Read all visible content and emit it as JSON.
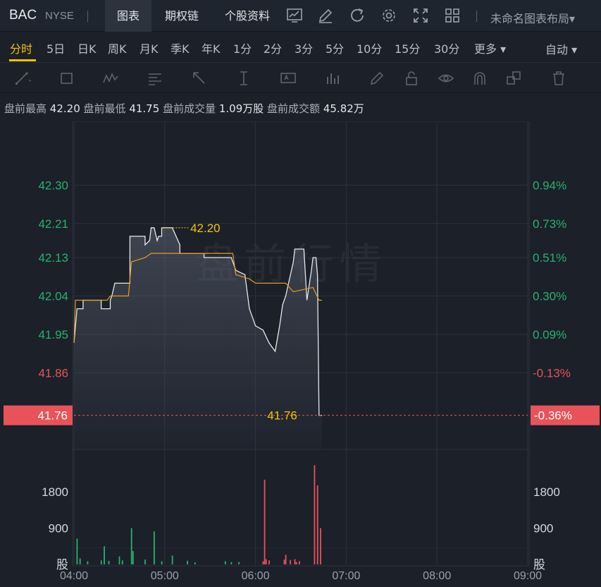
{
  "header": {
    "symbol": "BAC",
    "exchange": "NYSE",
    "tabs": [
      "图表",
      "期权链",
      "个股资料"
    ],
    "active_tab": "图表",
    "icons": [
      "chart-line-icon",
      "edit-icon",
      "refresh-icon",
      "settings-icon",
      "fullscreen-icon",
      "grid-layout-icon"
    ],
    "layout_label": "未命名图表布局▾"
  },
  "periods": {
    "items": [
      "分时",
      "5日",
      "日K",
      "周K",
      "月K",
      "季K",
      "年K",
      "1分",
      "2分",
      "3分",
      "5分",
      "10分",
      "15分",
      "30分",
      "更多 ▾"
    ],
    "active": "分时",
    "auto_label": "自动 ▾"
  },
  "drawing_tools": [
    "trend-line-icon",
    "rectangle-icon",
    "wave-pattern-icon",
    "text-lines-icon",
    "arrow-icon",
    "vertical-line-icon",
    "text-box-icon",
    "bar-indicator-icon",
    "pencil-icon",
    "lock-icon",
    "eye-icon",
    "magnet-icon",
    "layers-icon",
    "trash-icon"
  ],
  "info": {
    "high_label": "盘前最高",
    "high": "42.20",
    "low_label": "盘前最低",
    "low": "41.75",
    "vol_label": "盘前成交量",
    "vol": "1.09万股",
    "amt_label": "盘前成交额",
    "amt": "45.82万"
  },
  "watermark": "盘前行情",
  "colors": {
    "up": "#27b36b",
    "down": "#e8535a",
    "price_line": "#e6e8ea",
    "avg_line": "#e69a24",
    "highlight": "#f5c400",
    "grid": "#2c333d"
  },
  "chart_data": {
    "type": "line",
    "price_axis": {
      "ylim": [
        41.68,
        42.4
      ],
      "left_ticks": [
        "42.30",
        "42.21",
        "42.13",
        "42.04",
        "41.95",
        "41.86"
      ],
      "right_ticks": [
        "0.94%",
        "0.73%",
        "0.51%",
        "0.30%",
        "0.09%",
        "-0.13%"
      ],
      "last_price": "41.76",
      "last_change": "-0.36%",
      "high_marker": "42.20",
      "low_marker": "41.76"
    },
    "volume_axis": {
      "ylim": [
        0,
        2850
      ],
      "ticks": [
        "1800",
        "900"
      ],
      "unit": "股"
    },
    "x_ticks": [
      "04:00",
      "05:00",
      "06:00",
      "07:00",
      "08:00",
      "09:00"
    ],
    "x_range_minutes": [
      240,
      540
    ],
    "series": [
      {
        "values": [
          [
            240,
            41.93
          ],
          [
            242,
            42.01
          ],
          [
            246,
            42.01
          ],
          [
            246,
            42.03
          ],
          [
            258,
            42.03
          ],
          [
            258,
            42.01
          ],
          [
            264,
            42.01
          ],
          [
            264,
            42.03
          ],
          [
            265,
            42.04
          ],
          [
            267,
            42.07
          ],
          [
            277,
            42.07
          ],
          [
            277,
            42.08
          ],
          [
            277,
            42.18
          ],
          [
            287,
            42.18
          ],
          [
            287,
            42.17
          ],
          [
            287,
            42.16
          ],
          [
            290,
            42.17
          ],
          [
            291,
            42.2
          ],
          [
            293,
            42.2
          ],
          [
            295,
            42.17
          ],
          [
            296,
            42.18
          ],
          [
            298,
            42.18
          ],
          [
            298,
            42.2
          ],
          [
            305,
            42.2
          ],
          [
            310,
            42.16
          ],
          [
            310,
            42.14
          ],
          [
            326,
            42.14
          ],
          [
            326,
            42.13
          ],
          [
            344,
            42.13
          ],
          [
            347,
            42.1
          ],
          [
            353,
            42.09
          ],
          [
            356,
            42.01
          ],
          [
            358,
            41.99
          ],
          [
            360,
            41.97
          ],
          [
            365,
            41.96
          ],
          [
            369,
            41.93
          ],
          [
            373,
            41.91
          ],
          [
            376,
            41.97
          ],
          [
            378,
            42.02
          ],
          [
            380,
            42.04
          ],
          [
            385,
            42.12
          ],
          [
            386,
            42.15
          ],
          [
            392,
            42.15
          ],
          [
            394,
            42.03
          ],
          [
            397,
            42.1
          ],
          [
            398,
            42.13
          ],
          [
            400,
            42.13
          ],
          [
            401,
            42.09
          ],
          [
            402,
            41.76
          ],
          [
            404,
            41.76
          ]
        ]
      },
      {
        "values": [
          [
            240,
            41.93
          ],
          [
            241,
            42.03
          ],
          [
            262,
            42.03
          ],
          [
            264,
            42.04
          ],
          [
            276,
            42.04
          ],
          [
            278,
            42.12
          ],
          [
            287,
            42.13
          ],
          [
            291,
            42.14
          ],
          [
            327,
            42.14
          ],
          [
            345,
            42.14
          ],
          [
            347,
            42.09
          ],
          [
            356,
            42.08
          ],
          [
            360,
            42.07
          ],
          [
            380,
            42.07
          ],
          [
            385,
            42.05
          ],
          [
            398,
            42.06
          ],
          [
            402,
            42.03
          ],
          [
            404,
            42.03
          ]
        ]
      },
      {
        "values": [
          [
            242,
            640
          ],
          [
            244,
            150
          ],
          [
            249,
            80
          ],
          [
            258,
            100
          ],
          [
            260,
            450
          ],
          [
            263,
            90
          ],
          [
            270,
            200
          ],
          [
            272,
            100
          ],
          [
            278,
            900
          ],
          [
            279,
            330
          ],
          [
            287,
            120
          ],
          [
            293,
            820
          ],
          [
            298,
            80
          ],
          [
            305,
            220
          ],
          [
            315,
            90
          ],
          [
            320,
            50
          ],
          [
            340,
            80
          ],
          [
            344,
            60
          ],
          [
            349,
            60
          ],
          [
            365,
            80
          ],
          [
            367,
            130
          ],
          [
            369,
            100
          ],
          [
            379,
            120
          ],
          [
            380,
            240
          ],
          [
            383,
            110
          ],
          [
            387,
            60
          ],
          [
            389,
            80
          ],
          [
            366,
            2100
          ],
          [
            386,
            130
          ],
          [
            399,
            2460
          ],
          [
            401,
            1960
          ],
          [
            403,
            900
          ]
        ]
      }
    ]
  }
}
